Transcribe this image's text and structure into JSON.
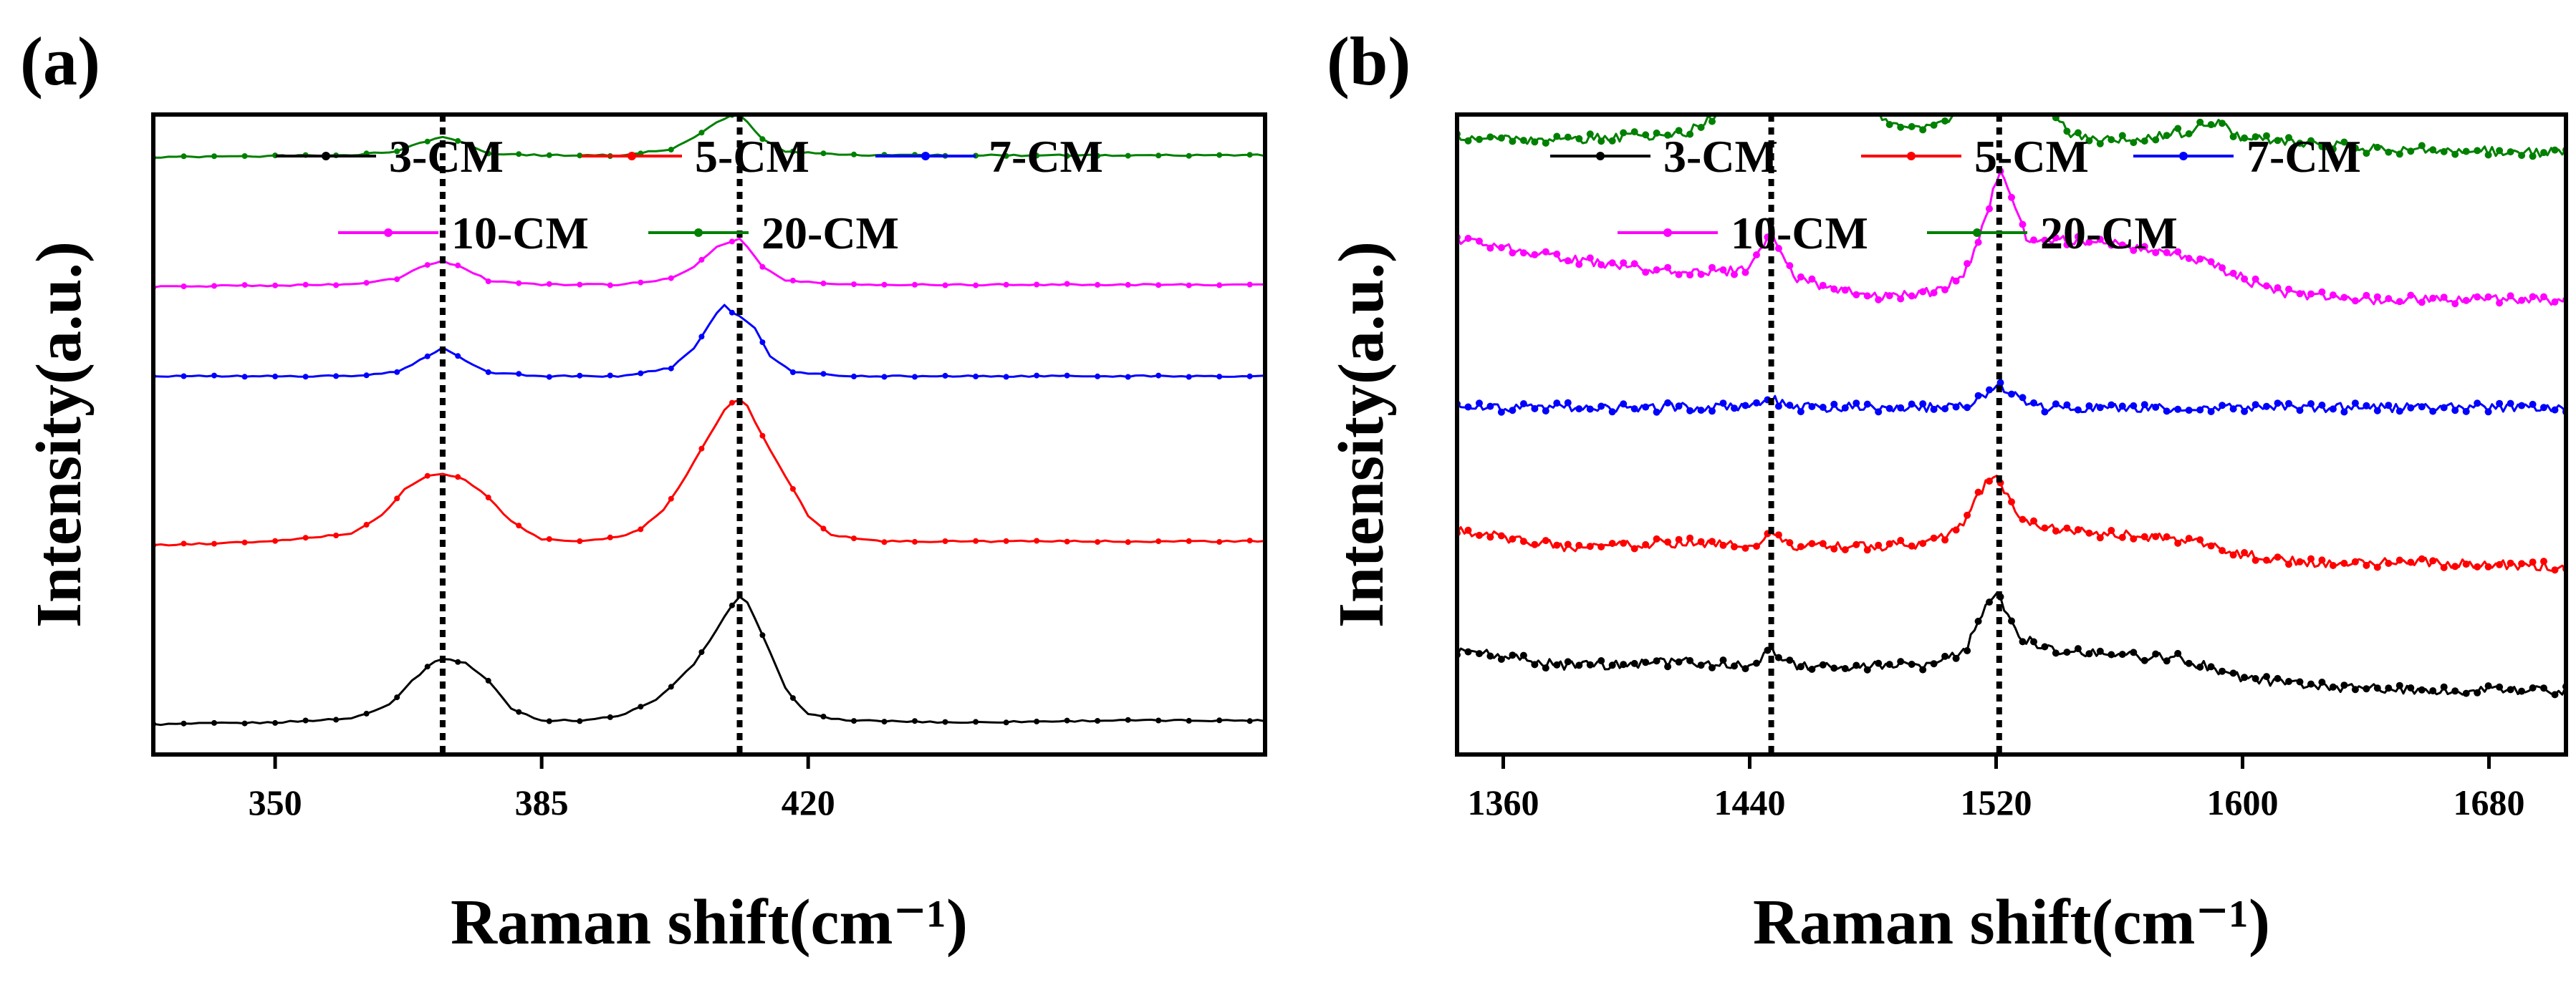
{
  "chart_data": [
    {
      "panel_label": "(a)",
      "type": "line",
      "xlabel": "Raman shift(cm⁻¹)",
      "ylabel": "Intensity(a.u.)",
      "xlim": [
        334,
        480
      ],
      "xticks": [
        "350",
        "385",
        "420"
      ],
      "xtick_values": [
        350,
        385,
        420
      ],
      "y_ticks_shown": false,
      "legend_position": "top-center",
      "vlines": [
        372,
        411
      ],
      "series": [
        {
          "name": "3-CM",
          "color": "#000000",
          "offset": 0,
          "x": [
            334,
            350,
            360,
            365,
            368,
            371,
            372,
            375,
            378,
            381,
            385,
            390,
            395,
            400,
            405,
            408,
            410,
            411,
            412,
            414,
            417,
            420,
            425,
            440,
            460,
            480
          ],
          "y": [
            0,
            0.01,
            0.03,
            0.1,
            0.22,
            0.32,
            0.33,
            0.31,
            0.22,
            0.08,
            0.02,
            0.02,
            0.04,
            0.12,
            0.3,
            0.48,
            0.6,
            0.64,
            0.61,
            0.45,
            0.18,
            0.05,
            0.02,
            0.01,
            0.02,
            0.02
          ]
        },
        {
          "name": "5-CM",
          "color": "#ff0000",
          "offset": 0.9,
          "x": [
            334,
            350,
            360,
            364,
            367,
            370,
            372,
            375,
            378,
            381,
            385,
            390,
            395,
            398,
            401,
            404,
            407,
            409,
            410,
            411,
            412,
            414,
            417,
            420,
            423,
            430,
            450,
            480
          ],
          "y": [
            0,
            0.02,
            0.06,
            0.15,
            0.28,
            0.35,
            0.36,
            0.33,
            0.24,
            0.12,
            0.03,
            0.02,
            0.04,
            0.08,
            0.18,
            0.35,
            0.55,
            0.68,
            0.72,
            0.73,
            0.7,
            0.55,
            0.35,
            0.15,
            0.05,
            0.02,
            0.02,
            0.02
          ]
        },
        {
          "name": "7-CM",
          "color": "#0000ff",
          "offset": 1.75,
          "x": [
            334,
            360,
            366,
            369,
            372,
            375,
            378,
            385,
            395,
            402,
            405,
            408,
            409,
            410,
            411,
            413,
            415,
            418,
            425,
            450,
            480
          ],
          "y": [
            0,
            0,
            0.02,
            0.08,
            0.14,
            0.08,
            0.02,
            0,
            0,
            0.04,
            0.14,
            0.32,
            0.36,
            0.32,
            0.3,
            0.24,
            0.1,
            0.02,
            0,
            0,
            0
          ]
        },
        {
          "name": "10-CM",
          "color": "#ff00ff",
          "offset": 2.2,
          "x": [
            334,
            360,
            366,
            369,
            372,
            375,
            378,
            385,
            395,
            402,
            405,
            408,
            410,
            411,
            412,
            414,
            417,
            425,
            450,
            480
          ],
          "y": [
            0,
            0.01,
            0.04,
            0.1,
            0.13,
            0.09,
            0.03,
            0.01,
            0.01,
            0.04,
            0.1,
            0.2,
            0.23,
            0.24,
            0.2,
            0.1,
            0.03,
            0.01,
            0.01,
            0.01
          ]
        },
        {
          "name": "20-CM",
          "color": "#008000",
          "offset": 2.85,
          "x": [
            334,
            360,
            366,
            369,
            372,
            375,
            378,
            385,
            395,
            402,
            405,
            408,
            410,
            411,
            412,
            414,
            417,
            425,
            450,
            480
          ],
          "y": [
            0,
            0.01,
            0.03,
            0.07,
            0.1,
            0.07,
            0.02,
            0.01,
            0.01,
            0.04,
            0.1,
            0.18,
            0.21,
            0.21,
            0.18,
            0.09,
            0.03,
            0.01,
            0.01,
            0.01
          ]
        }
      ]
    },
    {
      "panel_label": "(b)",
      "type": "line",
      "xlabel": "Raman shift(cm⁻¹)",
      "ylabel": "Intensity(a.u.)",
      "xlim": [
        1345,
        1705
      ],
      "xticks": [
        "1360",
        "1440",
        "1520",
        "1600",
        "1680"
      ],
      "xtick_values": [
        1360,
        1440,
        1520,
        1600,
        1680
      ],
      "y_ticks_shown": false,
      "legend_position": "top-center",
      "vlines": [
        1447,
        1521
      ],
      "series": [
        {
          "name": "3-CM",
          "color": "#000000",
          "offset": 0,
          "x": [
            1345,
            1380,
            1420,
            1440,
            1447,
            1455,
            1480,
            1500,
            1510,
            1515,
            1519,
            1521,
            1524,
            1528,
            1540,
            1560,
            1580,
            1600,
            1620,
            1660,
            1705
          ],
          "y": [
            0.12,
            0.08,
            0.09,
            0.08,
            0.12,
            0.08,
            0.08,
            0.08,
            0.12,
            0.2,
            0.26,
            0.26,
            0.2,
            0.15,
            0.12,
            0.11,
            0.1,
            0.05,
            0.03,
            0.02,
            0.02
          ]
        },
        {
          "name": "5-CM",
          "color": "#ff0000",
          "offset": 0.3,
          "x": [
            1345,
            1380,
            1420,
            1440,
            1447,
            1455,
            1480,
            1500,
            1510,
            1515,
            1519,
            1521,
            1524,
            1528,
            1540,
            1560,
            1580,
            1600,
            1620,
            1660,
            1705
          ],
          "y": [
            0.12,
            0.08,
            0.09,
            0.08,
            0.12,
            0.08,
            0.08,
            0.09,
            0.14,
            0.22,
            0.26,
            0.25,
            0.2,
            0.15,
            0.12,
            0.11,
            0.1,
            0.06,
            0.04,
            0.04,
            0.03
          ]
        },
        {
          "name": "7-CM",
          "color": "#0000ff",
          "offset": 0.72,
          "x": [
            1345,
            1440,
            1447,
            1455,
            1510,
            1516,
            1521,
            1526,
            1532,
            1600,
            1705
          ],
          "y": [
            0.01,
            0.01,
            0.03,
            0.01,
            0.01,
            0.04,
            0.07,
            0.04,
            0.01,
            0.01,
            0.01
          ]
        },
        {
          "name": "10-CM",
          "color": "#ff00ff",
          "offset": 0.95,
          "x": [
            1345,
            1370,
            1400,
            1430,
            1440,
            1447,
            1455,
            1480,
            1500,
            1510,
            1516,
            1521,
            1525,
            1530,
            1545,
            1570,
            1590,
            1610,
            1640,
            1705
          ],
          "y": [
            0.2,
            0.17,
            0.13,
            0.12,
            0.13,
            0.22,
            0.1,
            0.06,
            0.07,
            0.12,
            0.24,
            0.38,
            0.3,
            0.2,
            0.2,
            0.18,
            0.14,
            0.07,
            0.05,
            0.05
          ]
        },
        {
          "name": "20-CM",
          "color": "#008000",
          "offset": 1.25,
          "x": [
            1345,
            1370,
            1400,
            1420,
            1430,
            1437,
            1442,
            1447,
            1452,
            1458,
            1465,
            1470,
            1478,
            1485,
            1495,
            1505,
            1510,
            1514,
            1517,
            1519,
            1521,
            1524,
            1527,
            1530,
            1535,
            1545,
            1560,
            1580,
            1590,
            1600,
            1640,
            1705
          ],
          "y": [
            0.16,
            0.15,
            0.16,
            0.17,
            0.22,
            0.32,
            0.48,
            0.55,
            0.45,
            0.3,
            0.24,
            0.25,
            0.24,
            0.2,
            0.18,
            0.2,
            0.3,
            0.5,
            0.72,
            0.86,
            0.92,
            0.8,
            0.6,
            0.4,
            0.25,
            0.16,
            0.15,
            0.17,
            0.2,
            0.16,
            0.13,
            0.12
          ]
        }
      ]
    }
  ]
}
